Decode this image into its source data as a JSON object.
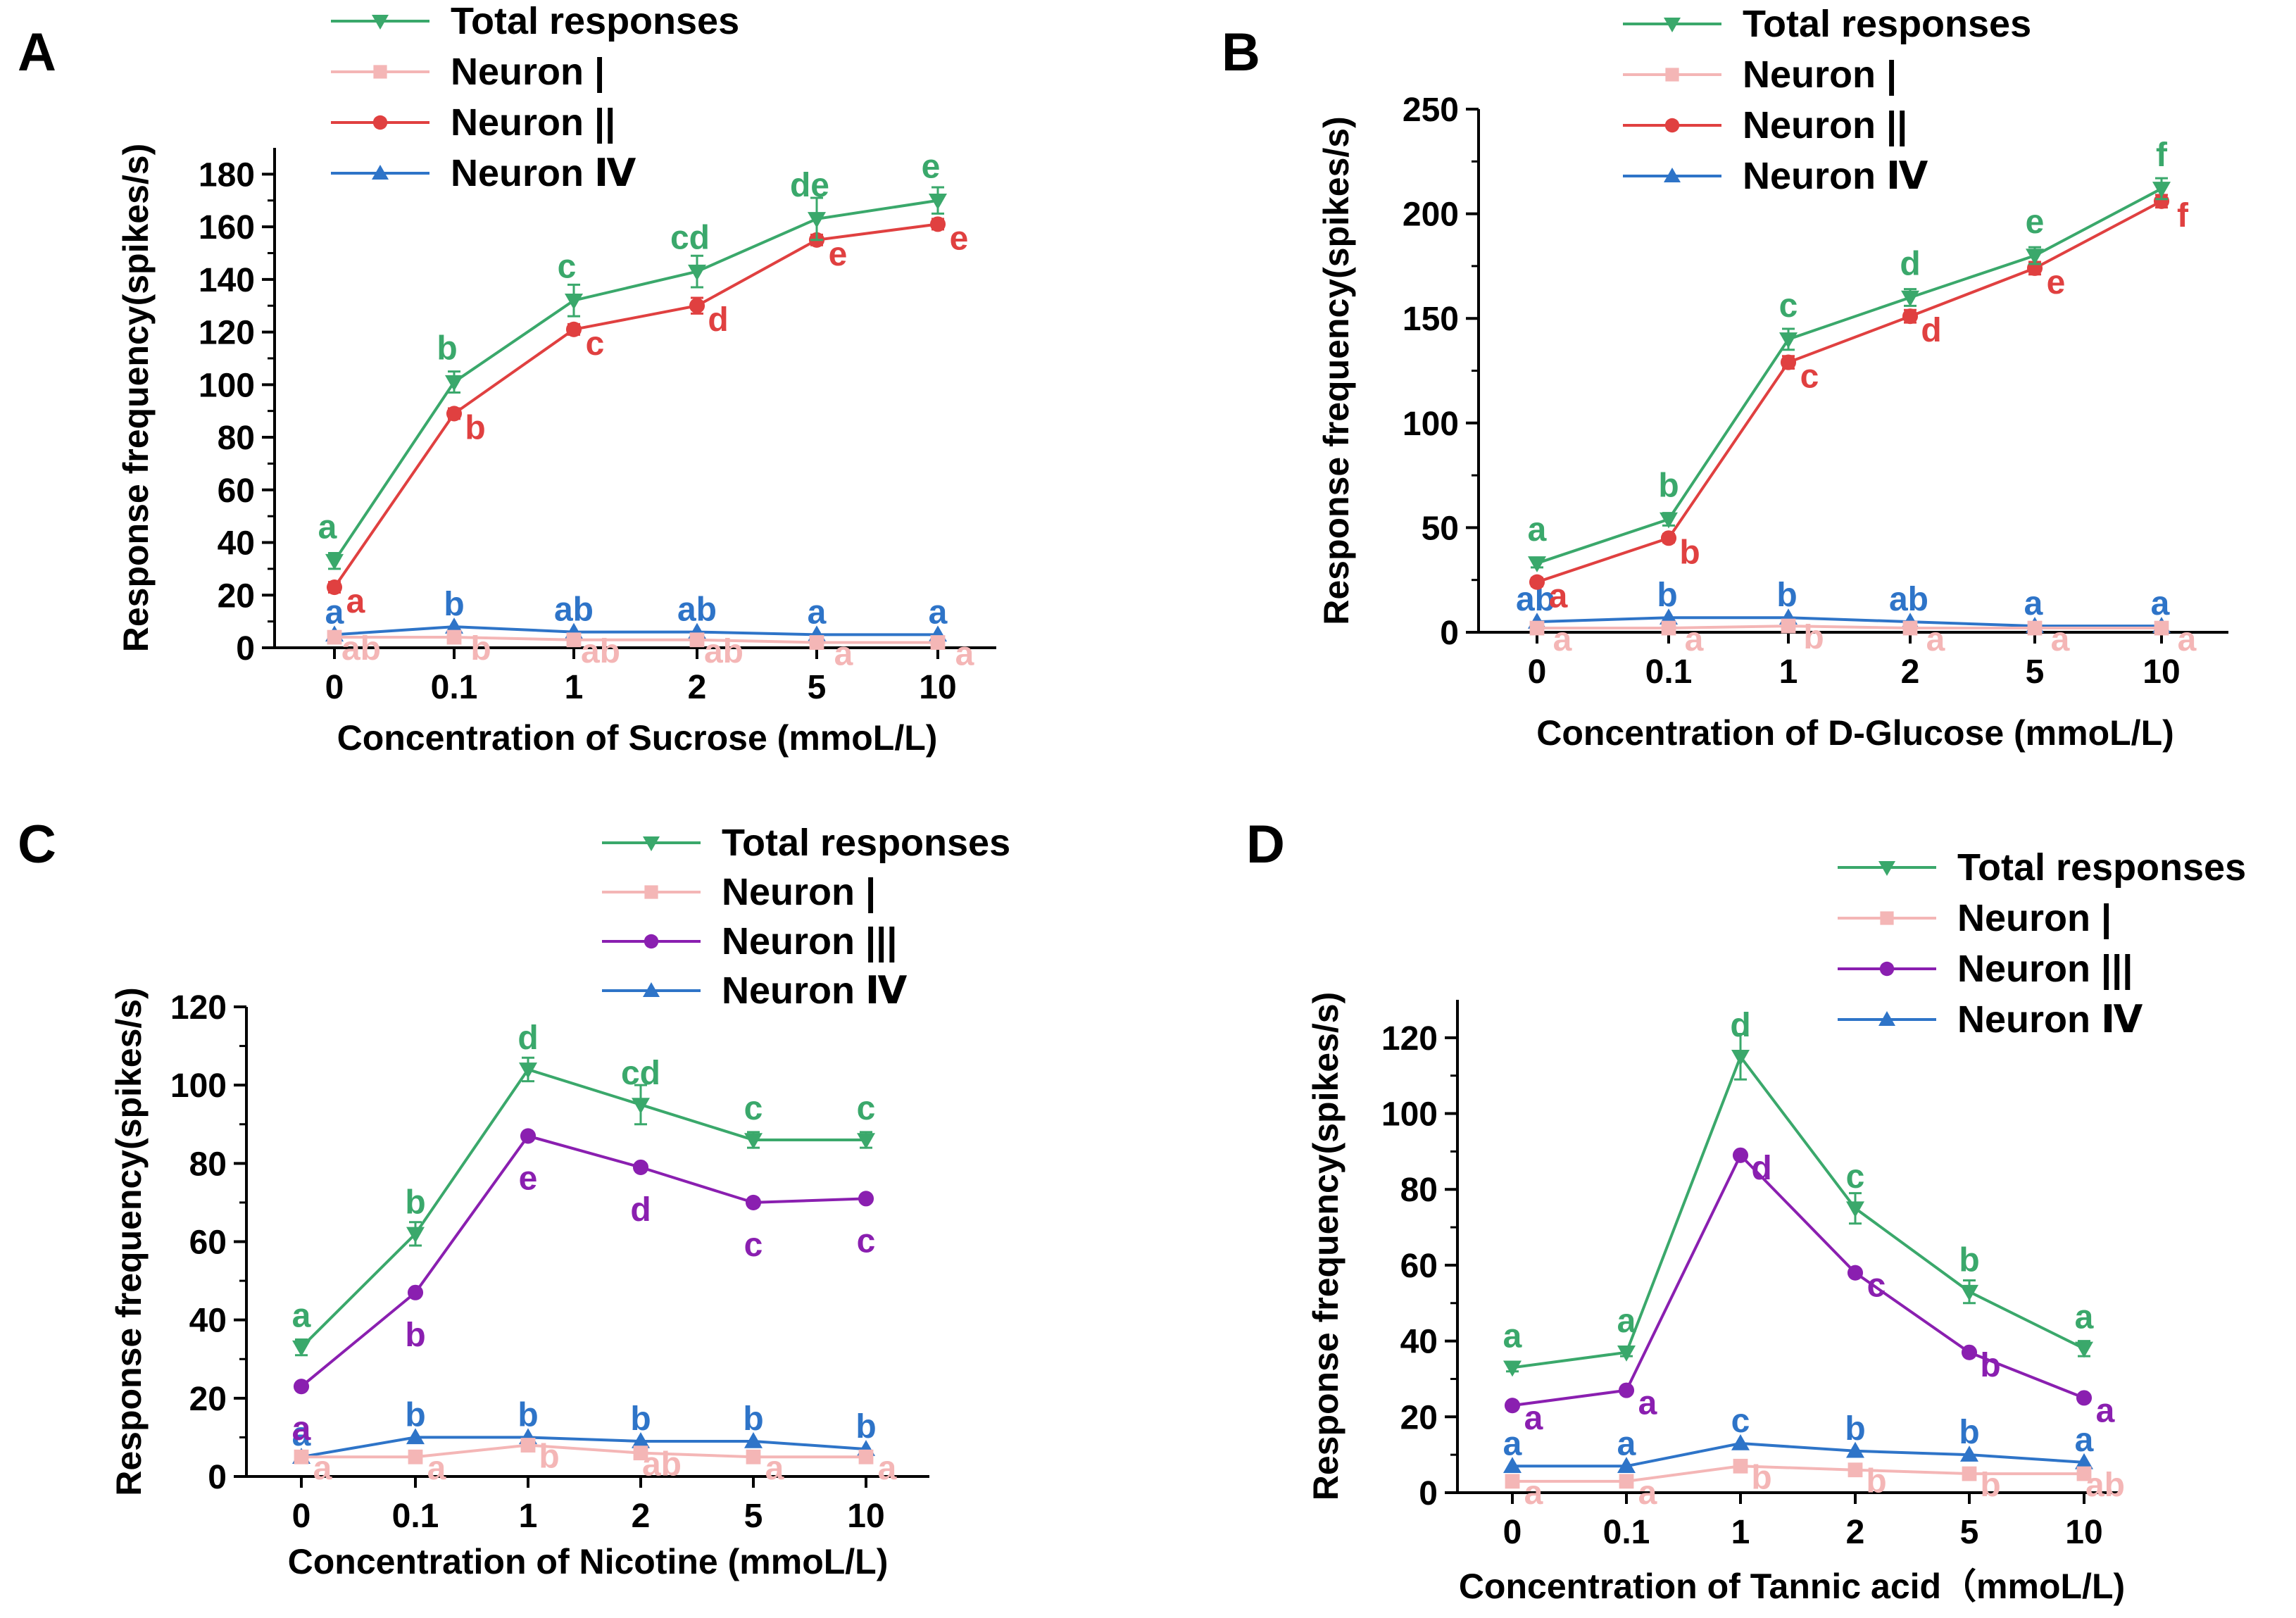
{
  "figure": {
    "colors": {
      "total": "#3aa86b",
      "neuron1": "#f4b6b6",
      "neuron2": "#e04040",
      "neuron3": "#8a1fb0",
      "neuron4": "#2e74c8"
    },
    "markers": {
      "total": "triangle-down",
      "neuron1": "square",
      "neuron2": "circle",
      "neuron3": "circle",
      "neuron4": "triangle-up"
    }
  },
  "chart_data": [
    {
      "panel": "A",
      "type": "line",
      "categories": [
        "0",
        "0.1",
        "1",
        "2",
        "5",
        "10"
      ],
      "xlabel": "Concentration of Sucrose (mmoL/L)",
      "ylabel": "Response frequency(spikes/s)",
      "ylim": [
        0,
        190
      ],
      "yticks": [
        0,
        20,
        40,
        60,
        80,
        100,
        120,
        140,
        160,
        180
      ],
      "legend_position": "top",
      "series": [
        {
          "key": "total",
          "name": "Total responses",
          "values": [
            33,
            101,
            132,
            143,
            163,
            170
          ],
          "errors": [
            3,
            4,
            6,
            6,
            8,
            5
          ],
          "letters": [
            "a",
            "b",
            "c",
            "cd",
            "de",
            "e"
          ]
        },
        {
          "key": "neuron1",
          "name": "Neuron |",
          "values": [
            4,
            4,
            3,
            3,
            2,
            2
          ],
          "errors": [
            0,
            0,
            0,
            0,
            0,
            0
          ],
          "letters": [
            "ab",
            "b",
            "ab",
            "ab",
            "a",
            "a"
          ]
        },
        {
          "key": "neuron2",
          "name": "Neuron ||",
          "values": [
            23,
            89,
            121,
            130,
            155,
            161
          ],
          "errors": [
            2,
            2,
            2,
            3,
            2,
            2
          ],
          "letters": [
            "a",
            "b",
            "c",
            "d",
            "e",
            "e"
          ]
        },
        {
          "key": "neuron4",
          "name": "Neuron Ⅳ",
          "values": [
            5,
            8,
            6,
            6,
            5,
            5
          ],
          "errors": [
            0,
            0,
            0,
            0,
            0,
            0
          ],
          "letters": [
            "a",
            "b",
            "ab",
            "ab",
            "a",
            "a"
          ]
        }
      ]
    },
    {
      "panel": "B",
      "type": "line",
      "categories": [
        "0",
        "0.1",
        "1",
        "2",
        "5",
        "10"
      ],
      "xlabel": "Concentration of D-Glucose (mmoL/L)",
      "ylabel": "Response frequency(spikes/s)",
      "ylim": [
        0,
        250
      ],
      "yticks": [
        0,
        50,
        100,
        150,
        200,
        250
      ],
      "legend_position": "top",
      "series": [
        {
          "key": "total",
          "name": "Total responses",
          "values": [
            33,
            54,
            140,
            160,
            180,
            212
          ],
          "errors": [
            2,
            3,
            5,
            4,
            4,
            5
          ],
          "letters": [
            "a",
            "b",
            "c",
            "d",
            "e",
            "f"
          ]
        },
        {
          "key": "neuron1",
          "name": "Neuron |",
          "values": [
            2,
            2,
            3,
            2,
            2,
            2
          ],
          "errors": [
            0,
            0,
            0,
            0,
            0,
            0
          ],
          "letters": [
            "a",
            "a",
            "b",
            "a",
            "a",
            "a"
          ]
        },
        {
          "key": "neuron2",
          "name": "Neuron ||",
          "values": [
            24,
            45,
            129,
            151,
            174,
            206
          ],
          "errors": [
            2,
            2,
            3,
            3,
            3,
            3
          ],
          "letters": [
            "a",
            "b",
            "c",
            "d",
            "e",
            "f"
          ]
        },
        {
          "key": "neuron4",
          "name": "Neuron Ⅳ",
          "values": [
            5,
            7,
            7,
            5,
            3,
            3
          ],
          "errors": [
            0,
            0,
            0,
            0,
            0,
            0
          ],
          "letters": [
            "ab",
            "b",
            "b",
            "ab",
            "a",
            "a"
          ]
        }
      ]
    },
    {
      "panel": "C",
      "type": "line",
      "categories": [
        "0",
        "0.1",
        "1",
        "2",
        "5",
        "10"
      ],
      "xlabel": "Concentration of Nicotine (mmoL/L)",
      "ylabel": "Response frequency(spikes/s)",
      "ylim": [
        0,
        120
      ],
      "yticks": [
        0,
        20,
        40,
        60,
        80,
        100,
        120
      ],
      "legend_position": "top-right",
      "series": [
        {
          "key": "total",
          "name": "Total responses",
          "values": [
            33,
            62,
            104,
            95,
            86,
            86
          ],
          "errors": [
            2,
            3,
            3,
            5,
            2,
            2
          ],
          "letters": [
            "a",
            "b",
            "d",
            "cd",
            "c",
            "c"
          ]
        },
        {
          "key": "neuron1",
          "name": "Neuron |",
          "values": [
            5,
            5,
            8,
            6,
            5,
            5
          ],
          "errors": [
            0,
            0,
            0,
            0,
            0,
            0
          ],
          "letters": [
            "a",
            "a",
            "b",
            "ab",
            "a",
            "a"
          ]
        },
        {
          "key": "neuron3",
          "name": "Neuron |||",
          "values": [
            23,
            47,
            87,
            79,
            70,
            71
          ],
          "errors": [
            0,
            0,
            0,
            0,
            0,
            0
          ],
          "letters": [
            "a",
            "b",
            "e",
            "d",
            "c",
            "c"
          ]
        },
        {
          "key": "neuron4",
          "name": "Neuron Ⅳ",
          "values": [
            5,
            10,
            10,
            9,
            9,
            7
          ],
          "errors": [
            0,
            0,
            0,
            0,
            0,
            0
          ],
          "letters": [
            "a",
            "b",
            "b",
            "b",
            "b",
            "b"
          ]
        }
      ]
    },
    {
      "panel": "D",
      "type": "line",
      "categories": [
        "0",
        "0.1",
        "1",
        "2",
        "5",
        "10"
      ],
      "xlabel": "Concentration of Tannic acid（mmoL/L)",
      "ylabel": "Response frequency(spikes/s)",
      "ylim": [
        0,
        130
      ],
      "yticks": [
        0,
        20,
        40,
        60,
        80,
        100,
        120
      ],
      "legend_position": "top-right",
      "series": [
        {
          "key": "total",
          "name": "Total responses",
          "values": [
            33,
            37,
            115,
            75,
            53,
            38
          ],
          "errors": [
            1,
            1,
            6,
            4,
            3,
            2
          ],
          "letters": [
            "a",
            "a",
            "d",
            "c",
            "b",
            "a"
          ]
        },
        {
          "key": "neuron1",
          "name": "Neuron |",
          "values": [
            3,
            3,
            7,
            6,
            5,
            5
          ],
          "errors": [
            0,
            0,
            0,
            0,
            0,
            0
          ],
          "letters": [
            "a",
            "a",
            "b",
            "b",
            "b",
            "ab"
          ]
        },
        {
          "key": "neuron3",
          "name": "Neuron |||",
          "values": [
            23,
            27,
            89,
            58,
            37,
            25
          ],
          "errors": [
            0,
            0,
            0,
            0,
            0,
            0
          ],
          "letters": [
            "a",
            "a",
            "d",
            "c",
            "b",
            "a"
          ]
        },
        {
          "key": "neuron4",
          "name": "Neuron Ⅳ",
          "values": [
            7,
            7,
            13,
            11,
            10,
            8
          ],
          "errors": [
            0,
            0,
            0,
            0,
            0,
            0
          ],
          "letters": [
            "a",
            "a",
            "c",
            "b",
            "b",
            "a"
          ]
        }
      ]
    }
  ]
}
